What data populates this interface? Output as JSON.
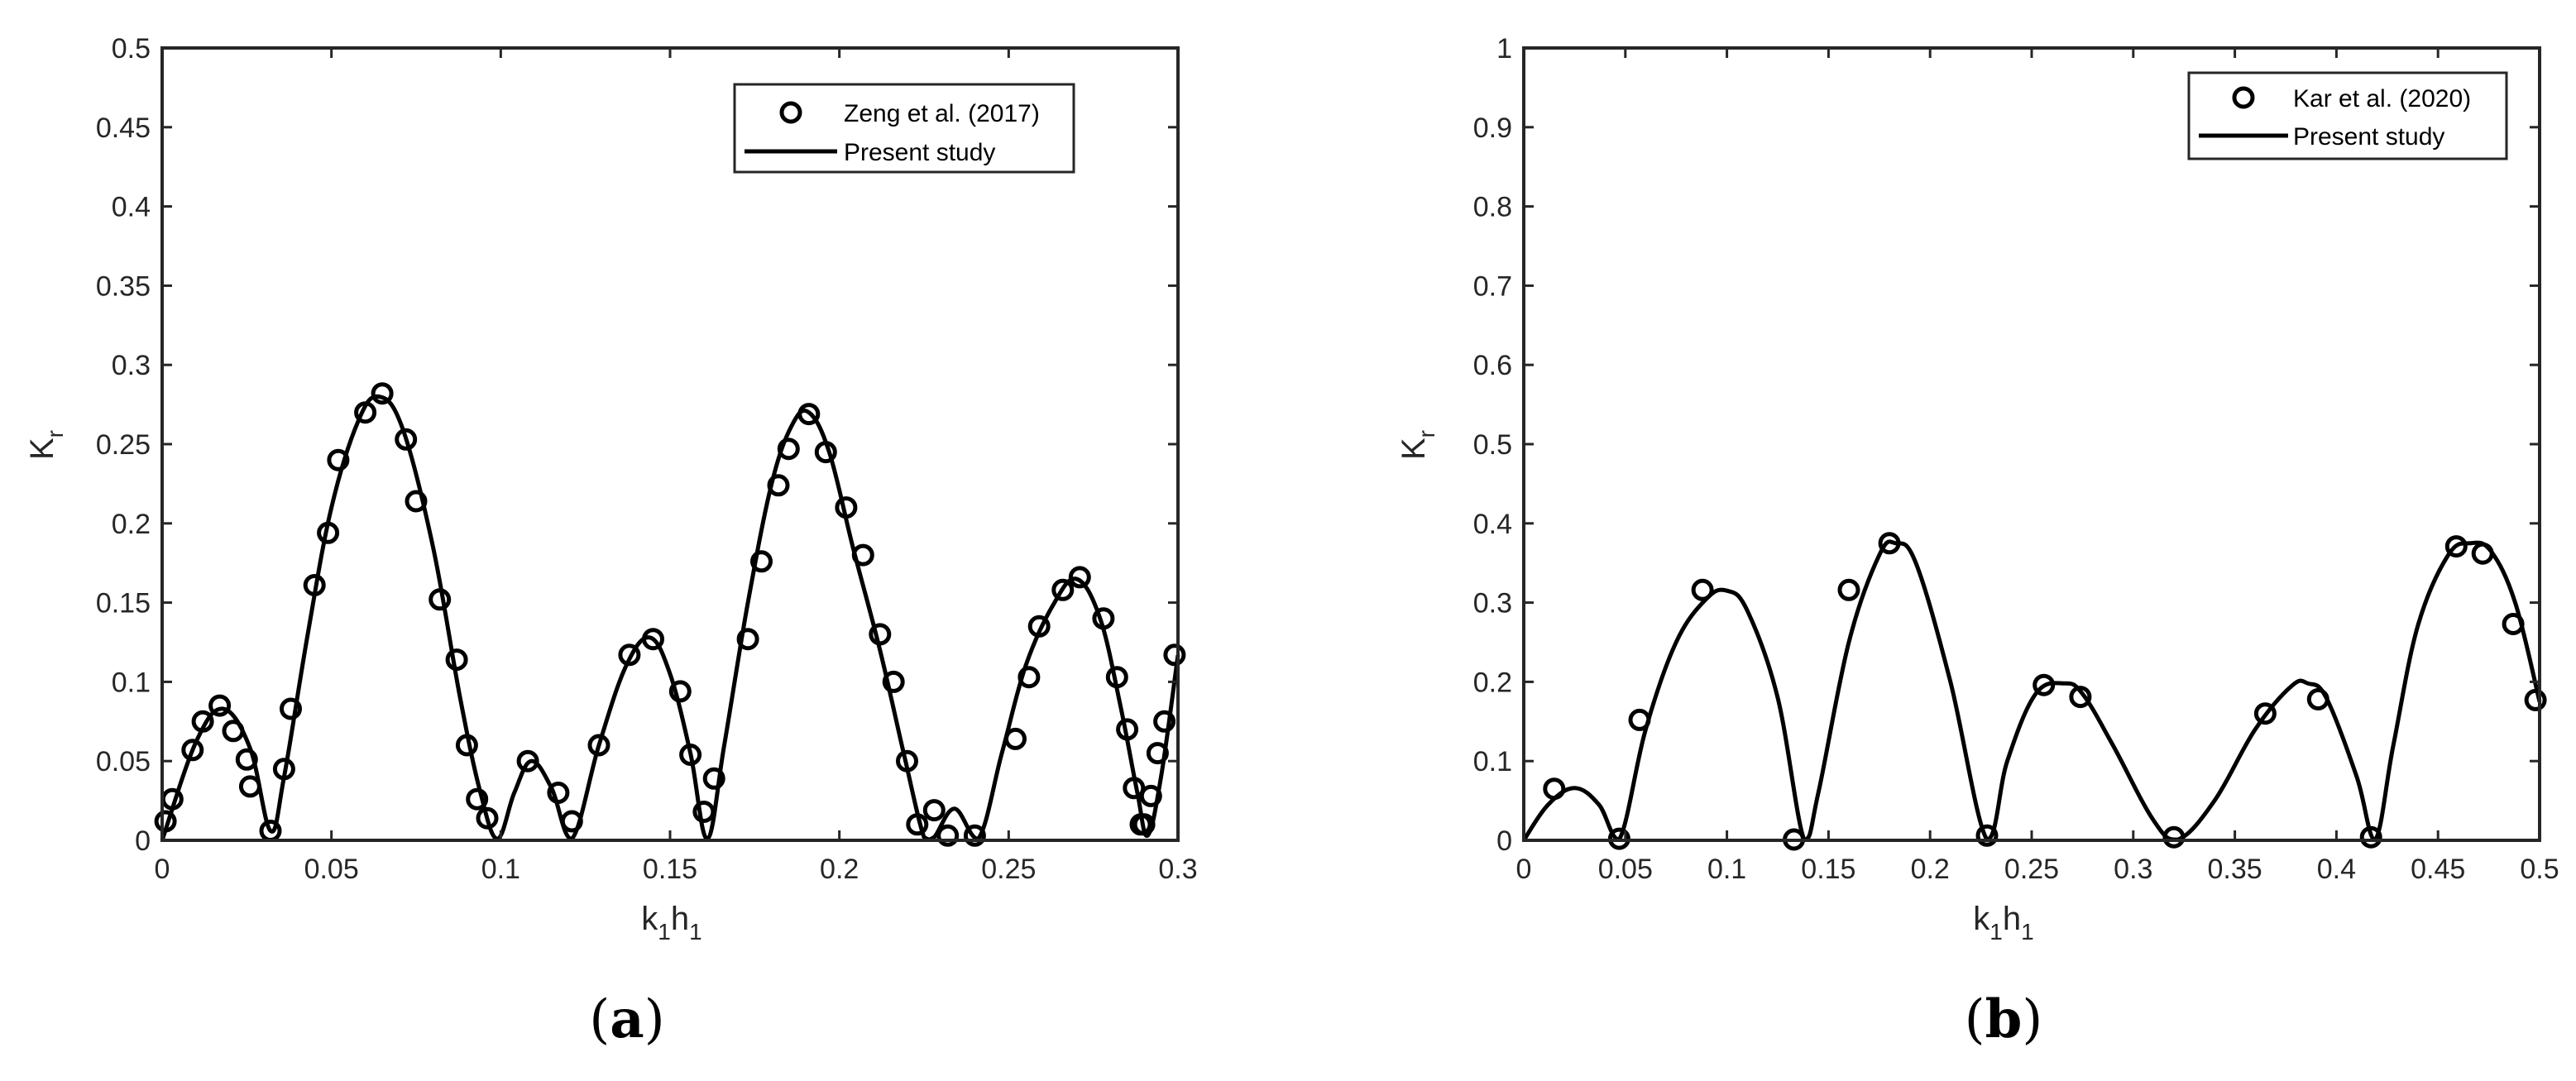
{
  "chart_data": [
    {
      "type": "line",
      "panel": "a",
      "caption_open": "(",
      "caption_letter": "a",
      "caption_close": ")",
      "xlabel": "k1h1",
      "xlabel_parts": {
        "k": "k",
        "sub1": "1",
        "h": "h",
        "sub2": "1"
      },
      "ylabel": "Kr",
      "ylabel_parts": {
        "main": "K",
        "sub": "r"
      },
      "xlim": [
        0,
        0.3
      ],
      "ylim": [
        0,
        0.5
      ],
      "xticks": [
        0,
        0.05,
        0.1,
        0.15,
        0.2,
        0.25,
        0.3
      ],
      "xtick_labels": [
        "0",
        "0.05",
        "0.1",
        "0.15",
        "0.2",
        "0.25",
        "0.3"
      ],
      "yticks": [
        0,
        0.05,
        0.1,
        0.15,
        0.2,
        0.25,
        0.3,
        0.35,
        0.4,
        0.45,
        0.5
      ],
      "ytick_labels": [
        "0",
        "0.05",
        "0.1",
        "0.15",
        "0.2",
        "0.25",
        "0.3",
        "0.35",
        "0.4",
        "0.45",
        "0.5"
      ],
      "grid": false,
      "legend_position": "top-right",
      "series": [
        {
          "name": "Zeng et al. (2017)",
          "style": "markers",
          "marker": "circle",
          "x": [
            0.001,
            0.003,
            0.009,
            0.012,
            0.017,
            0.021,
            0.025,
            0.026,
            0.032,
            0.036,
            0.038,
            0.045,
            0.049,
            0.052,
            0.06,
            0.065,
            0.072,
            0.075,
            0.082,
            0.087,
            0.09,
            0.093,
            0.096,
            0.108,
            0.117,
            0.121,
            0.129,
            0.138,
            0.145,
            0.153,
            0.156,
            0.16,
            0.163,
            0.173,
            0.177,
            0.182,
            0.185,
            0.191,
            0.196,
            0.202,
            0.207,
            0.212,
            0.216,
            0.22,
            0.223,
            0.228,
            0.232,
            0.24,
            0.252,
            0.256,
            0.259,
            0.266,
            0.271,
            0.278,
            0.282,
            0.285,
            0.287,
            0.289,
            0.29,
            0.292,
            0.294,
            0.296,
            0.299
          ],
          "y": [
            0.012,
            0.026,
            0.057,
            0.075,
            0.085,
            0.069,
            0.051,
            0.034,
            0.006,
            0.045,
            0.083,
            0.161,
            0.194,
            0.24,
            0.27,
            0.282,
            0.253,
            0.214,
            0.152,
            0.114,
            0.06,
            0.026,
            0.014,
            0.05,
            0.03,
            0.012,
            0.06,
            0.117,
            0.127,
            0.094,
            0.054,
            0.018,
            0.039,
            0.127,
            0.176,
            0.224,
            0.247,
            0.269,
            0.245,
            0.21,
            0.18,
            0.13,
            0.1,
            0.05,
            0.01,
            0.019,
            0.003,
            0.003,
            0.064,
            0.103,
            0.135,
            0.158,
            0.166,
            0.14,
            0.103,
            0.07,
            0.033,
            0.01,
            0.01,
            0.028,
            0.055,
            0.075,
            0.117
          ]
        },
        {
          "name": "Present study",
          "style": "line",
          "x": [
            0,
            0.01,
            0.018,
            0.026,
            0.032,
            0.036,
            0.043,
            0.05,
            0.058,
            0.064,
            0.071,
            0.08,
            0.088,
            0.094,
            0.099,
            0.104,
            0.109,
            0.115,
            0.121,
            0.129,
            0.137,
            0.144,
            0.15,
            0.156,
            0.161,
            0.166,
            0.173,
            0.18,
            0.186,
            0.191,
            0.197,
            0.204,
            0.212,
            0.219,
            0.225,
            0.228,
            0.234,
            0.241,
            0.248,
            0.255,
            0.263,
            0.27,
            0.277,
            0.283,
            0.288,
            0.291,
            0.295,
            0.3
          ],
          "y": [
            0,
            0.062,
            0.083,
            0.058,
            0.006,
            0.04,
            0.13,
            0.21,
            0.265,
            0.28,
            0.26,
            0.185,
            0.09,
            0.03,
            0.001,
            0.03,
            0.05,
            0.033,
            0.001,
            0.06,
            0.11,
            0.128,
            0.105,
            0.055,
            0.001,
            0.06,
            0.15,
            0.225,
            0.262,
            0.27,
            0.245,
            0.185,
            0.12,
            0.055,
            0.002,
            0.002,
            0.02,
            0.001,
            0.055,
            0.11,
            0.148,
            0.165,
            0.14,
            0.085,
            0.03,
            0.003,
            0.04,
            0.117
          ]
        }
      ]
    },
    {
      "type": "line",
      "panel": "b",
      "caption_open": "(",
      "caption_letter": "b",
      "caption_close": ")",
      "xlabel": "k1h1",
      "xlabel_parts": {
        "k": "k",
        "sub1": "1",
        "h": "h",
        "sub2": "1"
      },
      "ylabel": "Kr",
      "ylabel_parts": {
        "main": "K",
        "sub": "r"
      },
      "xlim": [
        0,
        0.5
      ],
      "ylim": [
        0,
        1
      ],
      "xticks": [
        0,
        0.05,
        0.1,
        0.15,
        0.2,
        0.25,
        0.3,
        0.35,
        0.4,
        0.45,
        0.5
      ],
      "xtick_labels": [
        "0",
        "0.05",
        "0.1",
        "0.15",
        "0.2",
        "0.25",
        "0.3",
        "0.35",
        "0.4",
        "0.45",
        "0.5"
      ],
      "yticks": [
        0,
        0.1,
        0.2,
        0.3,
        0.4,
        0.5,
        0.6,
        0.7,
        0.8,
        0.9,
        1
      ],
      "ytick_labels": [
        "0",
        "0.1",
        "0.2",
        "0.3",
        "0.4",
        "0.5",
        "0.6",
        "0.7",
        "0.8",
        "0.9",
        "1"
      ],
      "grid": false,
      "legend_position": "top-right",
      "series": [
        {
          "name": "Kar et al. (2020)",
          "style": "markers",
          "marker": "circle",
          "x": [
            0.015,
            0.047,
            0.057,
            0.088,
            0.133,
            0.16,
            0.18,
            0.228,
            0.256,
            0.274,
            0.32,
            0.365,
            0.391,
            0.417,
            0.459,
            0.472,
            0.487,
            0.498
          ],
          "y": [
            0.065,
            0.002,
            0.152,
            0.316,
            0.001,
            0.316,
            0.375,
            0.006,
            0.196,
            0.181,
            0.004,
            0.16,
            0.178,
            0.004,
            0.371,
            0.362,
            0.273,
            0.177
          ]
        },
        {
          "name": "Present study",
          "style": "line",
          "x": [
            0,
            0.012,
            0.025,
            0.037,
            0.047,
            0.06,
            0.075,
            0.09,
            0.1,
            0.11,
            0.125,
            0.138,
            0.145,
            0.16,
            0.175,
            0.183,
            0.193,
            0.21,
            0.228,
            0.238,
            0.252,
            0.266,
            0.275,
            0.29,
            0.31,
            0.322,
            0.34,
            0.36,
            0.378,
            0.386,
            0.395,
            0.41,
            0.419,
            0.428,
            0.44,
            0.455,
            0.466,
            0.476,
            0.488,
            0.5
          ],
          "y": [
            0,
            0.045,
            0.066,
            0.045,
            0.001,
            0.14,
            0.25,
            0.305,
            0.315,
            0.29,
            0.18,
            0.001,
            0.06,
            0.25,
            0.36,
            0.375,
            0.35,
            0.2,
            0.001,
            0.1,
            0.185,
            0.198,
            0.185,
            0.12,
            0.025,
            0.001,
            0.05,
            0.14,
            0.195,
            0.198,
            0.18,
            0.08,
            0.001,
            0.12,
            0.27,
            0.36,
            0.375,
            0.365,
            0.3,
            0.175
          ]
        }
      ]
    }
  ]
}
